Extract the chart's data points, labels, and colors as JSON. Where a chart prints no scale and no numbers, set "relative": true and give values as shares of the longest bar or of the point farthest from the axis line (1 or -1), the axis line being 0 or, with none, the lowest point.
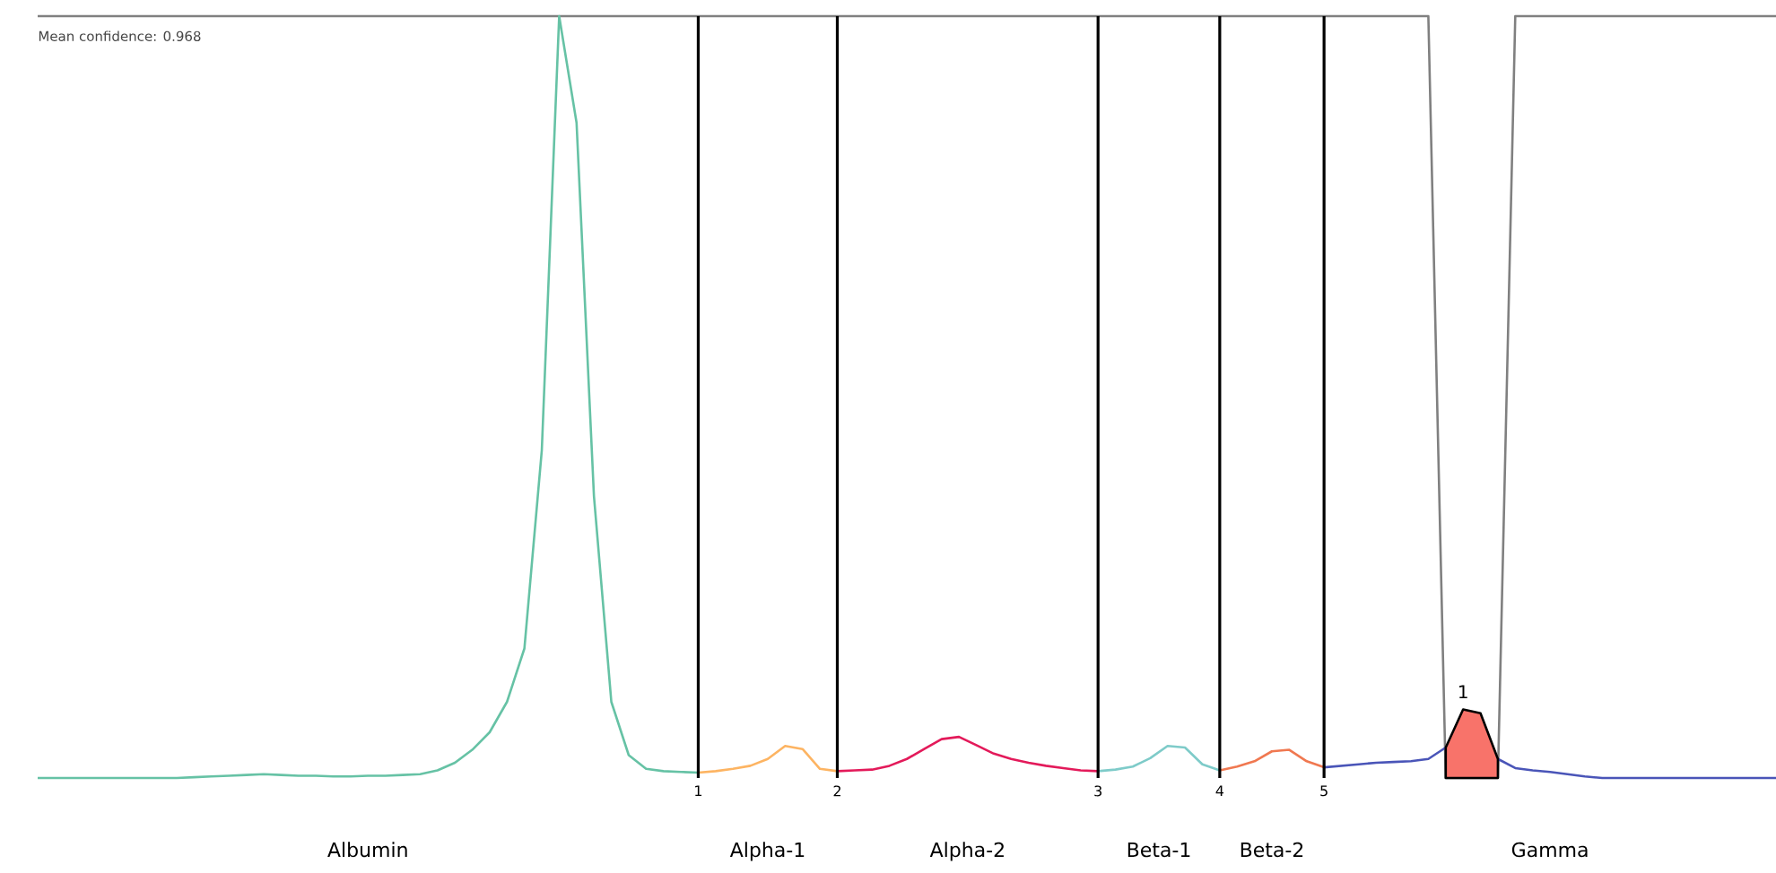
{
  "chart_data": {
    "type": "line",
    "relative": true,
    "categories": [
      null,
      null,
      null,
      null,
      null,
      null,
      null,
      null,
      null,
      null,
      null,
      null,
      null,
      null,
      null,
      null,
      null,
      null,
      null,
      null,
      null,
      null,
      null,
      null,
      null,
      null,
      null,
      null,
      null,
      null,
      null,
      null,
      null,
      null,
      null,
      null,
      null,
      null,
      "1",
      null,
      null,
      null,
      null,
      null,
      null,
      null,
      "2",
      null,
      null,
      null,
      null,
      null,
      null,
      null,
      null,
      null,
      null,
      null,
      null,
      null,
      null,
      "3",
      null,
      null,
      null,
      null,
      null,
      null,
      "4",
      null,
      null,
      null,
      null,
      null,
      "5",
      null,
      null,
      null,
      null,
      null,
      null,
      null,
      null,
      null,
      null,
      null,
      null,
      null,
      null,
      null,
      null,
      null,
      null,
      null,
      null,
      null,
      null,
      null,
      null,
      null,
      null
    ],
    "series": [
      {
        "color": "#808080",
        "values": [
          1,
          1,
          1,
          1,
          1,
          1,
          1,
          1,
          1,
          1,
          1,
          1,
          1,
          1,
          1,
          1,
          1,
          1,
          1,
          1,
          1,
          1,
          1,
          1,
          1,
          1,
          1,
          1,
          1,
          1,
          1,
          1,
          1,
          1,
          1,
          1,
          1,
          1,
          1,
          1,
          1,
          1,
          1,
          1,
          1,
          1,
          1,
          1,
          1,
          1,
          1,
          1,
          1,
          1,
          1,
          1,
          1,
          1,
          1,
          1,
          1,
          1,
          1,
          1,
          1,
          1,
          1,
          1,
          1,
          1,
          1,
          1,
          1,
          1,
          1,
          1,
          1,
          1,
          1,
          1,
          1,
          0,
          0,
          0,
          0,
          1,
          1,
          1,
          1,
          1,
          1,
          1,
          1,
          1,
          1,
          1,
          1,
          1,
          1,
          1,
          1
        ]
      },
      {
        "color": "#66c2a5",
        "values": [
          0,
          0,
          0,
          0,
          0,
          0,
          0,
          0,
          0,
          0.001,
          0.002,
          0.003,
          0.004,
          0.005,
          0.004,
          0.003,
          0.003,
          0.002,
          0.002,
          0.003,
          0.003,
          0.004,
          0.005,
          0.01,
          0.02,
          0.037,
          0.06,
          0.1,
          0.17,
          0.43,
          1,
          0.86,
          0.37,
          0.1,
          0.03,
          0.012,
          0.009,
          0.008,
          0.007,
          null,
          null,
          null,
          null,
          null,
          null,
          null,
          null,
          null,
          null,
          null,
          null,
          null,
          null,
          null,
          null,
          null,
          null,
          null,
          null,
          null,
          null,
          null,
          null,
          null,
          null,
          null,
          null,
          null,
          null,
          null,
          null,
          null,
          null,
          null,
          null,
          null,
          null,
          null,
          null,
          null,
          null,
          null,
          null,
          null,
          null,
          null,
          null,
          null,
          null,
          null,
          null,
          null,
          null,
          null,
          null,
          null,
          null,
          null,
          null,
          null,
          null
        ]
      },
      {
        "color": "#fdb462",
        "values": [
          null,
          null,
          null,
          null,
          null,
          null,
          null,
          null,
          null,
          null,
          null,
          null,
          null,
          null,
          null,
          null,
          null,
          null,
          null,
          null,
          null,
          null,
          null,
          null,
          null,
          null,
          null,
          null,
          null,
          null,
          null,
          null,
          null,
          null,
          null,
          null,
          null,
          null,
          0.007,
          0.009,
          0.012,
          0.016,
          0.025,
          0.042,
          0.038,
          0.012,
          0.009,
          null,
          null,
          null,
          null,
          null,
          null,
          null,
          null,
          null,
          null,
          null,
          null,
          null,
          null,
          null,
          null,
          null,
          null,
          null,
          null,
          null,
          null,
          null,
          null,
          null,
          null,
          null,
          null,
          null,
          null,
          null,
          null,
          null,
          null,
          null,
          null,
          null,
          null,
          null,
          null,
          null,
          null,
          null,
          null,
          null,
          null,
          null,
          null,
          null,
          null,
          null,
          null,
          null,
          null
        ]
      },
      {
        "color": "#e31a5a",
        "values": [
          null,
          null,
          null,
          null,
          null,
          null,
          null,
          null,
          null,
          null,
          null,
          null,
          null,
          null,
          null,
          null,
          null,
          null,
          null,
          null,
          null,
          null,
          null,
          null,
          null,
          null,
          null,
          null,
          null,
          null,
          null,
          null,
          null,
          null,
          null,
          null,
          null,
          null,
          null,
          null,
          null,
          null,
          null,
          null,
          null,
          null,
          0.009,
          0.01,
          0.011,
          0.016,
          0.025,
          0.038,
          0.051,
          0.054,
          0.043,
          0.032,
          0.025,
          0.02,
          0.016,
          0.013,
          0.01,
          0.009,
          null,
          null,
          null,
          null,
          null,
          null,
          null,
          null,
          null,
          null,
          null,
          null,
          null,
          null,
          null,
          null,
          null,
          null,
          null,
          null,
          null,
          null,
          null,
          null,
          null,
          null,
          null,
          null,
          null,
          null,
          null,
          null,
          null,
          null,
          null,
          null,
          null,
          null,
          null
        ]
      },
      {
        "color": "#7ecbc9",
        "values": [
          null,
          null,
          null,
          null,
          null,
          null,
          null,
          null,
          null,
          null,
          null,
          null,
          null,
          null,
          null,
          null,
          null,
          null,
          null,
          null,
          null,
          null,
          null,
          null,
          null,
          null,
          null,
          null,
          null,
          null,
          null,
          null,
          null,
          null,
          null,
          null,
          null,
          null,
          null,
          null,
          null,
          null,
          null,
          null,
          null,
          null,
          null,
          null,
          null,
          null,
          null,
          null,
          null,
          null,
          null,
          null,
          null,
          null,
          null,
          null,
          null,
          0.009,
          0.011,
          0.015,
          0.026,
          0.042,
          0.04,
          0.018,
          0.01,
          null,
          null,
          null,
          null,
          null,
          null,
          null,
          null,
          null,
          null,
          null,
          null,
          null,
          null,
          null,
          null,
          null,
          null,
          null,
          null,
          null,
          null,
          null,
          null,
          null,
          null,
          null,
          null,
          null,
          null,
          null,
          null
        ]
      },
      {
        "color": "#f07850",
        "values": [
          null,
          null,
          null,
          null,
          null,
          null,
          null,
          null,
          null,
          null,
          null,
          null,
          null,
          null,
          null,
          null,
          null,
          null,
          null,
          null,
          null,
          null,
          null,
          null,
          null,
          null,
          null,
          null,
          null,
          null,
          null,
          null,
          null,
          null,
          null,
          null,
          null,
          null,
          null,
          null,
          null,
          null,
          null,
          null,
          null,
          null,
          null,
          null,
          null,
          null,
          null,
          null,
          null,
          null,
          null,
          null,
          null,
          null,
          null,
          null,
          null,
          null,
          null,
          null,
          null,
          null,
          null,
          null,
          0.01,
          0.015,
          0.022,
          0.035,
          0.037,
          0.022,
          0.014,
          null,
          null,
          null,
          null,
          null,
          null,
          null,
          null,
          null,
          null,
          null,
          null,
          null,
          null,
          null,
          null,
          null,
          null,
          null,
          null,
          null,
          null,
          null,
          null,
          null,
          null
        ]
      },
      {
        "color": "#4a55b8",
        "values": [
          null,
          null,
          null,
          null,
          null,
          null,
          null,
          null,
          null,
          null,
          null,
          null,
          null,
          null,
          null,
          null,
          null,
          null,
          null,
          null,
          null,
          null,
          null,
          null,
          null,
          null,
          null,
          null,
          null,
          null,
          null,
          null,
          null,
          null,
          null,
          null,
          null,
          null,
          null,
          null,
          null,
          null,
          null,
          null,
          null,
          null,
          null,
          null,
          null,
          null,
          null,
          null,
          null,
          null,
          null,
          null,
          null,
          null,
          null,
          null,
          null,
          null,
          null,
          null,
          null,
          null,
          null,
          null,
          null,
          null,
          null,
          null,
          null,
          null,
          0.014,
          0.016,
          0.018,
          0.02,
          0.021,
          0.022,
          0.025,
          0.04,
          null,
          null,
          0.025,
          0.013,
          0.01,
          0.008,
          0.005,
          0.002,
          0,
          0,
          0,
          0,
          0,
          0,
          0,
          0,
          0,
          0,
          0
        ]
      },
      {
        "type": "area",
        "color": "#f8736a",
        "values": [
          null,
          null,
          null,
          null,
          null,
          null,
          null,
          null,
          null,
          null,
          null,
          null,
          null,
          null,
          null,
          null,
          null,
          null,
          null,
          null,
          null,
          null,
          null,
          null,
          null,
          null,
          null,
          null,
          null,
          null,
          null,
          null,
          null,
          null,
          null,
          null,
          null,
          null,
          null,
          null,
          null,
          null,
          null,
          null,
          null,
          null,
          null,
          null,
          null,
          null,
          null,
          null,
          null,
          null,
          null,
          null,
          null,
          null,
          null,
          null,
          null,
          null,
          null,
          null,
          null,
          null,
          null,
          null,
          null,
          null,
          null,
          null,
          null,
          null,
          null,
          null,
          null,
          null,
          null,
          null,
          null,
          0.04,
          0.09,
          0.085,
          0.025,
          null,
          null,
          null,
          null,
          null,
          null,
          null,
          null,
          null,
          null,
          null,
          null,
          null,
          null,
          null,
          null
        ]
      }
    ],
    "ref_lines": [
      {
        "axis": "x",
        "value": "1",
        "color": "#000000"
      },
      {
        "axis": "x",
        "value": "2",
        "color": "#000000"
      },
      {
        "axis": "x",
        "value": "3",
        "color": "#000000"
      },
      {
        "axis": "x",
        "value": "4",
        "color": "#000000"
      },
      {
        "axis": "x",
        "value": "5",
        "color": "#000000"
      }
    ],
    "annotations": [
      "Mean confidence: 0.968",
      "Albumin",
      "Alpha-1",
      "Alpha-2",
      "Beta-1",
      "Beta-2",
      "Gamma",
      "1"
    ]
  }
}
